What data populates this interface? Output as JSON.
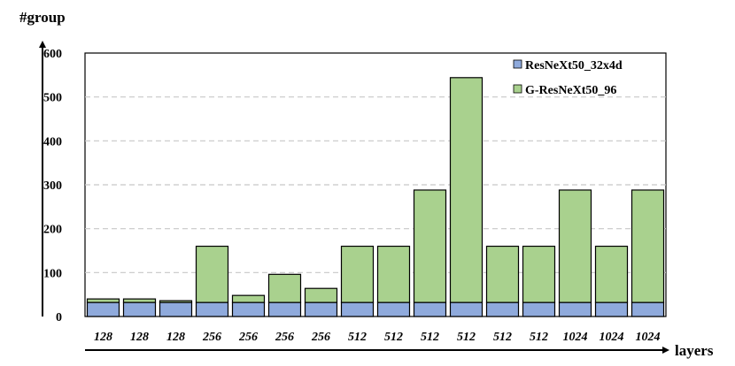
{
  "chart_data": {
    "type": "bar",
    "stacked": true,
    "ylabel": "#group",
    "xlabel": "layers",
    "ylim": [
      0,
      600
    ],
    "yticks": [
      0,
      100,
      200,
      300,
      400,
      500,
      600
    ],
    "grid": true,
    "legend_position": "top-right",
    "categories": [
      "128",
      "128",
      "128",
      "256",
      "256",
      "256",
      "256",
      "512",
      "512",
      "512",
      "512",
      "512",
      "512",
      "1024",
      "1024",
      "1024"
    ],
    "series": [
      {
        "name": "ResNeXt50_32x4d",
        "color": "#8faadc",
        "values": [
          32,
          32,
          32,
          32,
          32,
          32,
          32,
          32,
          32,
          32,
          32,
          32,
          32,
          32,
          32,
          32
        ]
      },
      {
        "name": "G-ResNeXt50_96",
        "color": "#a9d18e",
        "values": [
          8,
          8,
          4,
          128,
          16,
          64,
          32,
          128,
          128,
          256,
          512,
          128,
          128,
          256,
          128,
          256
        ]
      }
    ]
  }
}
